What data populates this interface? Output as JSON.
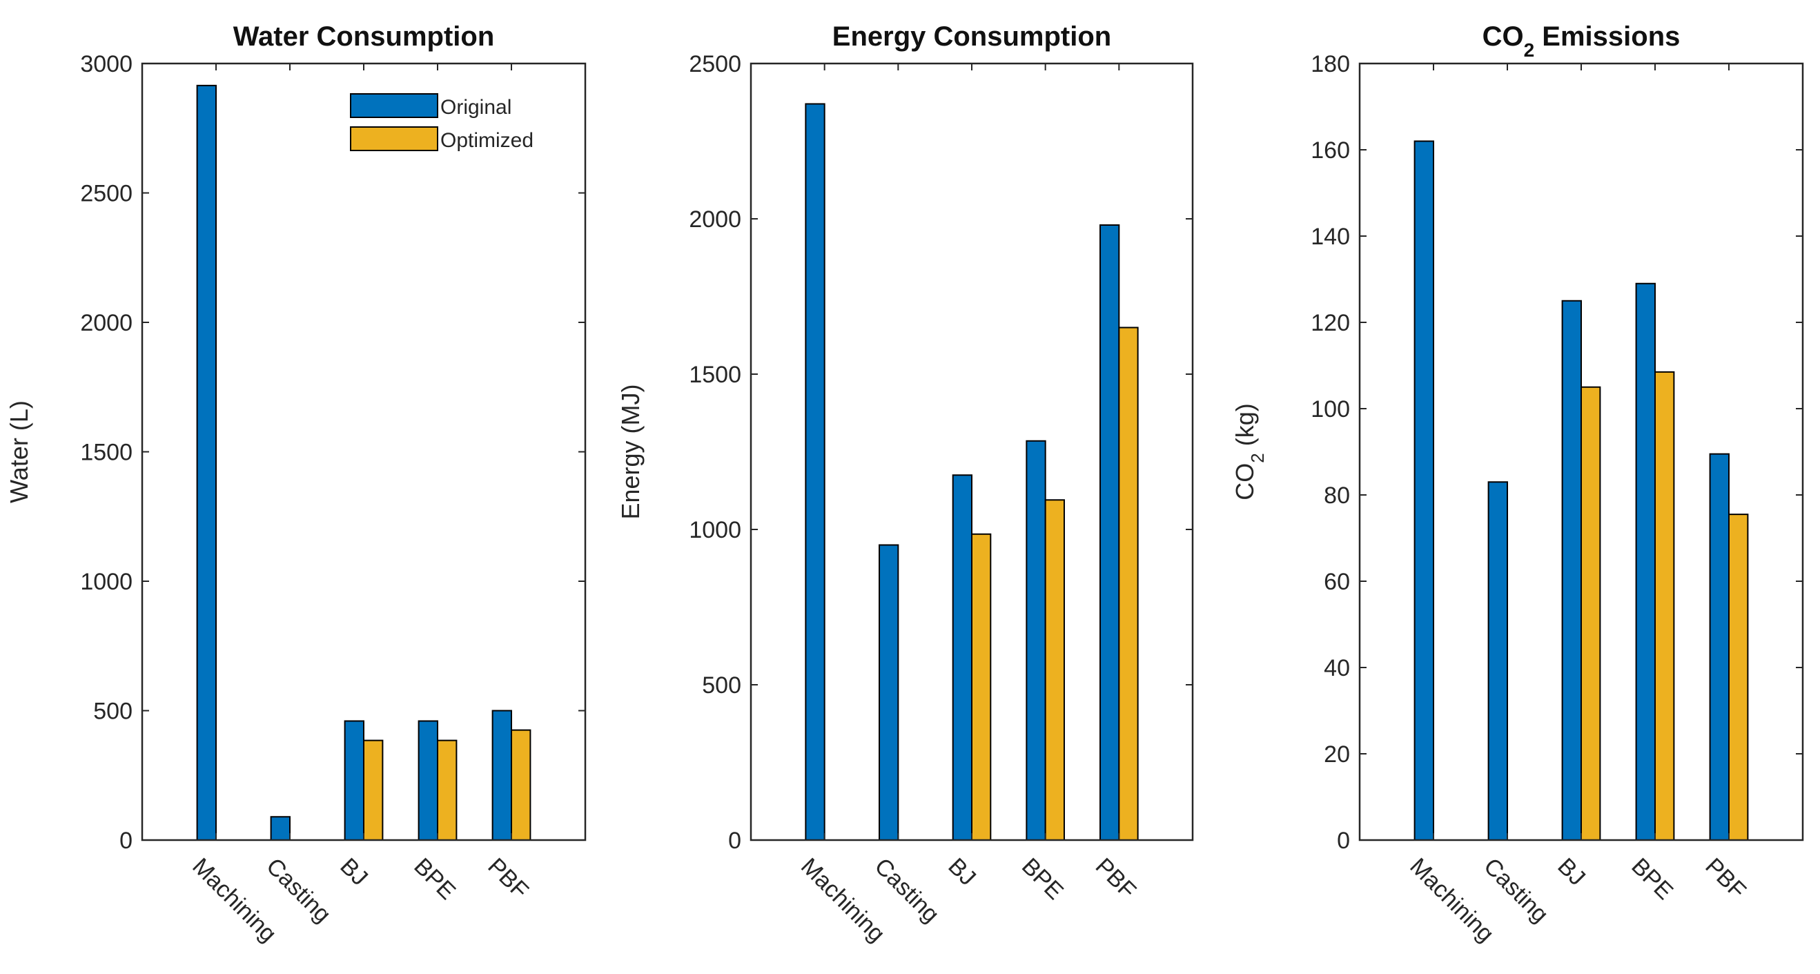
{
  "chart_data": [
    {
      "type": "bar",
      "title": "Water Consumption",
      "ylabel": "Water (L)",
      "xlabel": "",
      "ylim": [
        0,
        3000
      ],
      "yticks": [
        "0",
        "500",
        "1000",
        "1500",
        "2000",
        "2500",
        "3000"
      ],
      "categories": [
        "Machining",
        "Casting",
        "BJ",
        "BPE",
        "PBF"
      ],
      "series": [
        {
          "name": "Original",
          "color": "#0072BD",
          "values": [
            2915,
            90,
            460,
            460,
            500
          ]
        },
        {
          "name": "Optimized",
          "color": "#EDB120",
          "values": [
            0,
            0,
            385,
            385,
            425
          ]
        }
      ],
      "legend": {
        "position": "top-right",
        "entries": [
          "Original",
          "Optimized"
        ]
      }
    },
    {
      "type": "bar",
      "title": "Energy Consumption",
      "ylabel": "Energy (MJ)",
      "xlabel": "",
      "ylim": [
        0,
        2500
      ],
      "yticks": [
        "0",
        "500",
        "1000",
        "1500",
        "2000",
        "2500"
      ],
      "categories": [
        "Machining",
        "Casting",
        "BJ",
        "BPE",
        "PBF"
      ],
      "series": [
        {
          "name": "Original",
          "color": "#0072BD",
          "values": [
            2370,
            950,
            1175,
            1285,
            1980
          ]
        },
        {
          "name": "Optimized",
          "color": "#EDB120",
          "values": [
            0,
            0,
            985,
            1095,
            1650
          ]
        }
      ]
    },
    {
      "type": "bar",
      "title": "CO",
      "title_sub": "2",
      "title_suffix": " Emissions",
      "ylabel": "CO",
      "ylabel_sub": "2",
      "ylabel_suffix": " (kg)",
      "xlabel": "",
      "ylim": [
        0,
        180
      ],
      "yticks": [
        "0",
        "20",
        "40",
        "60",
        "80",
        "100",
        "120",
        "140",
        "160",
        "180"
      ],
      "categories": [
        "Machining",
        "Casting",
        "BJ",
        "BPE",
        "PBF"
      ],
      "series": [
        {
          "name": "Original",
          "color": "#0072BD",
          "values": [
            162,
            83,
            125,
            129,
            89.5
          ]
        },
        {
          "name": "Optimized",
          "color": "#EDB120",
          "values": [
            0,
            0,
            105,
            108.5,
            75.5
          ]
        }
      ]
    }
  ]
}
